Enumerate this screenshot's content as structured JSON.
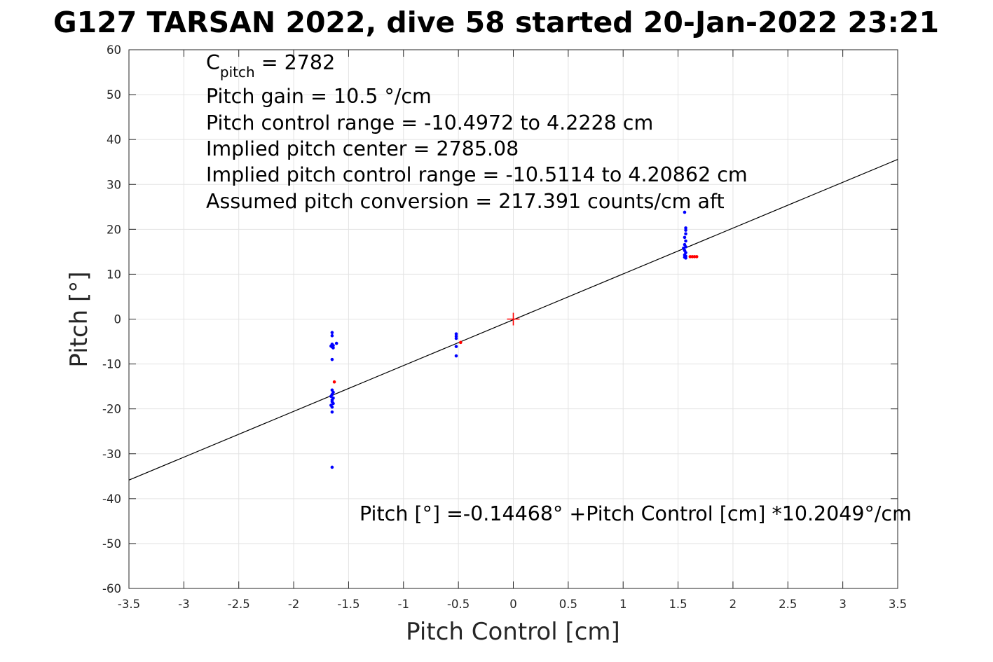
{
  "chart_data": {
    "type": "scatter",
    "title": "G127 TARSAN 2022, dive 58 started 20-Jan-2022 23:21",
    "xlabel": "Pitch Control [cm]",
    "ylabel": "Pitch [°]",
    "xlim": [
      -3.5,
      3.5
    ],
    "ylim": [
      -60,
      60
    ],
    "xticks": [
      -3.5,
      -3,
      -2.5,
      -2,
      -1.5,
      -1,
      -0.5,
      0,
      0.5,
      1,
      1.5,
      2,
      2.5,
      3,
      3.5
    ],
    "xtick_labels": [
      "-3.5",
      "-3",
      "-2.5",
      "-2",
      "-1.5",
      "-1",
      "-0.5",
      "0",
      "0.5",
      "1",
      "1.5",
      "2",
      "2.5",
      "3",
      "3.5"
    ],
    "yticks": [
      60,
      50,
      40,
      30,
      20,
      10,
      0,
      -10,
      -20,
      -30,
      -40,
      -50,
      -60
    ],
    "ytick_labels": [
      "60",
      "50",
      "40",
      "30",
      "20",
      "10",
      "0",
      "-10",
      "-20",
      "-30",
      "-40",
      "-50",
      "-60"
    ],
    "grid": true,
    "annotations": {
      "c_pitch_main": "C",
      "c_pitch_sub": "pitch",
      "c_pitch_value": " = 2782",
      "pitch_gain": "Pitch gain = 10.5 °/cm",
      "pitch_control_range": "Pitch control range = -10.4972 to 4.2228 cm",
      "implied_center": "Implied pitch center = 2785.08",
      "implied_range": "Implied pitch control range = -10.5114 to 4.20862 cm",
      "assumed_conversion": "Assumed pitch conversion = 217.391 counts/cm aft",
      "fit_equation": "Pitch [°] =-0.14468° +Pitch Control [cm] *10.2049°/cm"
    },
    "fit_line": {
      "intercept": -0.14468,
      "slope": 10.2049,
      "color": "#000000"
    },
    "center_marker": {
      "x": 0,
      "y": 0,
      "color": "#ff0000"
    },
    "series": [
      {
        "color": "#0000ff",
        "points": [
          [
            -1.65,
            -3.0
          ],
          [
            -1.65,
            -3.7
          ],
          [
            -1.65,
            -5.6
          ],
          [
            -1.64,
            -5.9
          ],
          [
            -1.65,
            -6.2
          ],
          [
            -1.66,
            -6.0
          ],
          [
            -1.64,
            -6.4
          ],
          [
            -1.61,
            -5.4
          ],
          [
            -1.65,
            -9.0
          ],
          [
            -1.65,
            -15.8
          ],
          [
            -1.64,
            -16.3
          ],
          [
            -1.65,
            -16.8
          ],
          [
            -1.66,
            -17.2
          ],
          [
            -1.64,
            -17.6
          ],
          [
            -1.65,
            -18.0
          ],
          [
            -1.65,
            -18.4
          ],
          [
            -1.64,
            -18.8
          ],
          [
            -1.66,
            -19.2
          ],
          [
            -1.65,
            -19.6
          ],
          [
            -1.65,
            -20.7
          ],
          [
            -1.65,
            -33.0
          ],
          [
            -0.52,
            -3.3
          ],
          [
            -0.52,
            -3.8
          ],
          [
            -0.52,
            -4.3
          ],
          [
            -0.52,
            -6.1
          ],
          [
            -0.52,
            -8.2
          ],
          [
            1.56,
            23.8
          ],
          [
            1.57,
            20.3
          ],
          [
            1.57,
            19.8
          ],
          [
            1.57,
            19.0
          ],
          [
            1.56,
            18.2
          ],
          [
            1.57,
            17.4
          ],
          [
            1.56,
            16.6
          ],
          [
            1.57,
            16.1
          ],
          [
            1.55,
            15.8
          ],
          [
            1.56,
            15.3
          ],
          [
            1.57,
            14.8
          ],
          [
            1.56,
            14.3
          ],
          [
            1.57,
            14.0
          ],
          [
            1.56,
            13.8
          ],
          [
            1.57,
            13.6
          ]
        ]
      },
      {
        "color": "#ff0000",
        "points": [
          [
            -1.63,
            -14.0
          ],
          [
            -0.48,
            -5.2
          ],
          [
            1.61,
            13.9
          ],
          [
            1.63,
            13.9
          ],
          [
            1.65,
            13.9
          ],
          [
            1.67,
            13.9
          ]
        ]
      }
    ]
  }
}
